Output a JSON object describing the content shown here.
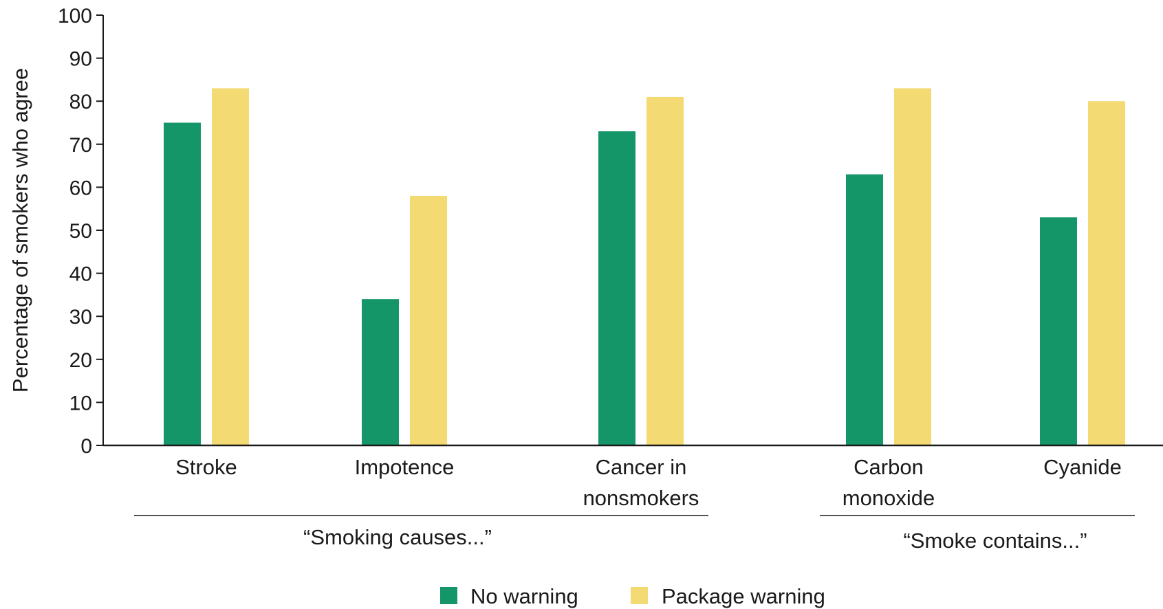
{
  "chart_data": {
    "type": "bar",
    "ylabel": "Percentage of smokers who agree",
    "ylim": [
      0,
      100
    ],
    "yticks": [
      0,
      10,
      20,
      30,
      40,
      50,
      60,
      70,
      80,
      90,
      100
    ],
    "categories": [
      [
        "Stroke"
      ],
      [
        "Impotence"
      ],
      [
        "Cancer in",
        "nonsmokers"
      ],
      [
        "Carbon",
        "monoxide"
      ],
      [
        "Cyanide"
      ]
    ],
    "series": [
      {
        "name": "No warning",
        "color": "#159669",
        "values": [
          75,
          34,
          73,
          63,
          53
        ]
      },
      {
        "name": "Package warning",
        "color": "#f4da72",
        "values": [
          83,
          58,
          81,
          83,
          80
        ]
      }
    ],
    "groups": [
      {
        "label": "“Smoking causes...”",
        "categories": [
          0,
          1,
          2
        ]
      },
      {
        "label": "“Smoke contains...”",
        "categories": [
          3,
          4
        ]
      }
    ],
    "legend_position": "bottom-center",
    "grid": false
  }
}
